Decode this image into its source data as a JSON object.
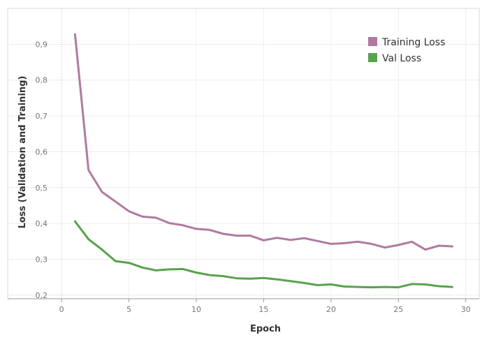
{
  "chart_data": {
    "type": "line",
    "title": "",
    "xlabel": "Epoch",
    "ylabel": "Loss (Validation and Training)",
    "xlim": [
      -4,
      31
    ],
    "ylim": [
      0.19,
      1.0
    ],
    "x_ticks": [
      0,
      5,
      10,
      15,
      20,
      25,
      30
    ],
    "y_ticks": [
      0.2,
      0.3,
      0.4,
      0.5,
      0.6,
      0.7,
      0.8,
      0.9
    ],
    "y_tick_labels": [
      "0,2",
      "0,3",
      "0,4",
      "0,5",
      "0,6",
      "0,7",
      "0,8",
      "0,9"
    ],
    "grid": true,
    "legend_position": "top-right",
    "x": [
      1,
      2,
      3,
      4,
      5,
      6,
      7,
      8,
      9,
      10,
      11,
      12,
      13,
      14,
      15,
      16,
      17,
      18,
      19,
      20,
      21,
      22,
      23,
      24,
      25,
      26,
      27,
      28,
      29
    ],
    "series": [
      {
        "name": "Training Loss",
        "color": "#b07aa1",
        "values": [
          0.928,
          0.549,
          0.488,
          0.461,
          0.434,
          0.419,
          0.416,
          0.401,
          0.395,
          0.385,
          0.382,
          0.371,
          0.366,
          0.366,
          0.353,
          0.36,
          0.354,
          0.359,
          0.351,
          0.343,
          0.345,
          0.349,
          0.343,
          0.333,
          0.34,
          0.349,
          0.327,
          0.338,
          0.336
        ]
      },
      {
        "name": "Val Loss",
        "color": "#59a14f",
        "values": [
          0.406,
          0.356,
          0.327,
          0.295,
          0.29,
          0.277,
          0.269,
          0.272,
          0.273,
          0.263,
          0.256,
          0.253,
          0.247,
          0.246,
          0.248,
          0.244,
          0.239,
          0.234,
          0.228,
          0.23,
          0.224,
          0.223,
          0.222,
          0.223,
          0.222,
          0.231,
          0.23,
          0.225,
          0.223
        ]
      }
    ]
  }
}
